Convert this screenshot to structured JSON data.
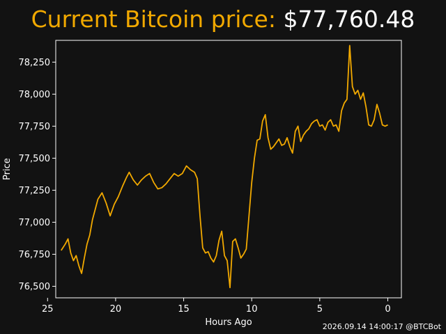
{
  "title": {
    "label": "Current Bitcoin price: ",
    "price": "$77,760.48"
  },
  "footer": {
    "timestamp": "2026.09.14 14:00:17 @BTCBot"
  },
  "colors": {
    "background": "#121212",
    "line": "#f2a900",
    "label_text": "#f2a900",
    "text": "#ffffff",
    "axes": "#ffffff"
  },
  "chart_data": {
    "type": "line",
    "title": "Current Bitcoin price: $77,760.48",
    "xlabel": "Hours Ago",
    "ylabel": "Price",
    "x_inverted": true,
    "xlim": [
      24.4,
      -1.0
    ],
    "ylim": [
      76410,
      78420
    ],
    "x_ticks": [
      25,
      20,
      15,
      10,
      5,
      0
    ],
    "x_tick_labels": [
      "25",
      "20",
      "15",
      "10",
      "5",
      "0"
    ],
    "y_ticks": [
      76500,
      76750,
      77000,
      77250,
      77500,
      77750,
      78000,
      78250
    ],
    "y_tick_labels": [
      "76,500",
      "76,750",
      "77,000",
      "77,250",
      "77,500",
      "77,750",
      "78,000",
      "78,250"
    ],
    "grid": false,
    "legend": "none",
    "series": [
      {
        "x": [
          24.0,
          23.7,
          23.5,
          23.3,
          23.1,
          22.9,
          22.7,
          22.5,
          22.3,
          22.1,
          21.9,
          21.7,
          21.5,
          21.3,
          21.0,
          20.7,
          20.4,
          20.1,
          19.8,
          19.5,
          19.2,
          19.0,
          18.7,
          18.4,
          18.1,
          17.8,
          17.5,
          17.2,
          16.9,
          16.6,
          16.3,
          16.0,
          15.7,
          15.4,
          15.1,
          14.8,
          14.5,
          14.2,
          14.0,
          13.8,
          13.6,
          13.4,
          13.2,
          13.0,
          12.8,
          12.6,
          12.4,
          12.2,
          12.0,
          11.8,
          11.6,
          11.4,
          11.2,
          11.0,
          10.8,
          10.6,
          10.4,
          10.2,
          10.0,
          9.8,
          9.6,
          9.4,
          9.2,
          9.0,
          8.8,
          8.6,
          8.4,
          8.2,
          8.0,
          7.8,
          7.6,
          7.4,
          7.2,
          7.0,
          6.8,
          6.6,
          6.4,
          6.2,
          6.0,
          5.8,
          5.6,
          5.4,
          5.2,
          5.0,
          4.8,
          4.6,
          4.4,
          4.2,
          4.0,
          3.8,
          3.6,
          3.4,
          3.2,
          3.0,
          2.8,
          2.6,
          2.4,
          2.2,
          2.0,
          1.8,
          1.6,
          1.4,
          1.2,
          1.0,
          0.8,
          0.6,
          0.4,
          0.2,
          0.0
        ],
        "y": [
          76780,
          76830,
          76870,
          76760,
          76700,
          76740,
          76660,
          76600,
          76720,
          76830,
          76900,
          77020,
          77100,
          77180,
          77230,
          77150,
          77050,
          77140,
          77200,
          77280,
          77350,
          77390,
          77330,
          77290,
          77330,
          77360,
          77380,
          77310,
          77260,
          77270,
          77300,
          77340,
          77380,
          77360,
          77380,
          77440,
          77410,
          77390,
          77340,
          77050,
          76800,
          76760,
          76770,
          76720,
          76690,
          76740,
          76860,
          76930,
          76740,
          76700,
          76490,
          76850,
          76870,
          76800,
          76720,
          76750,
          76790,
          77050,
          77310,
          77500,
          77640,
          77650,
          77790,
          77840,
          77660,
          77570,
          77590,
          77620,
          77650,
          77600,
          77610,
          77660,
          77590,
          77540,
          77710,
          77750,
          77630,
          77680,
          77710,
          77730,
          77770,
          77790,
          77800,
          77750,
          77760,
          77720,
          77780,
          77800,
          77750,
          77760,
          77710,
          77870,
          77930,
          77960,
          78380,
          78060,
          78000,
          78030,
          77960,
          78010,
          77900,
          77760,
          77750,
          77800,
          77920,
          77850,
          77760,
          77750,
          77760
        ]
      }
    ]
  }
}
